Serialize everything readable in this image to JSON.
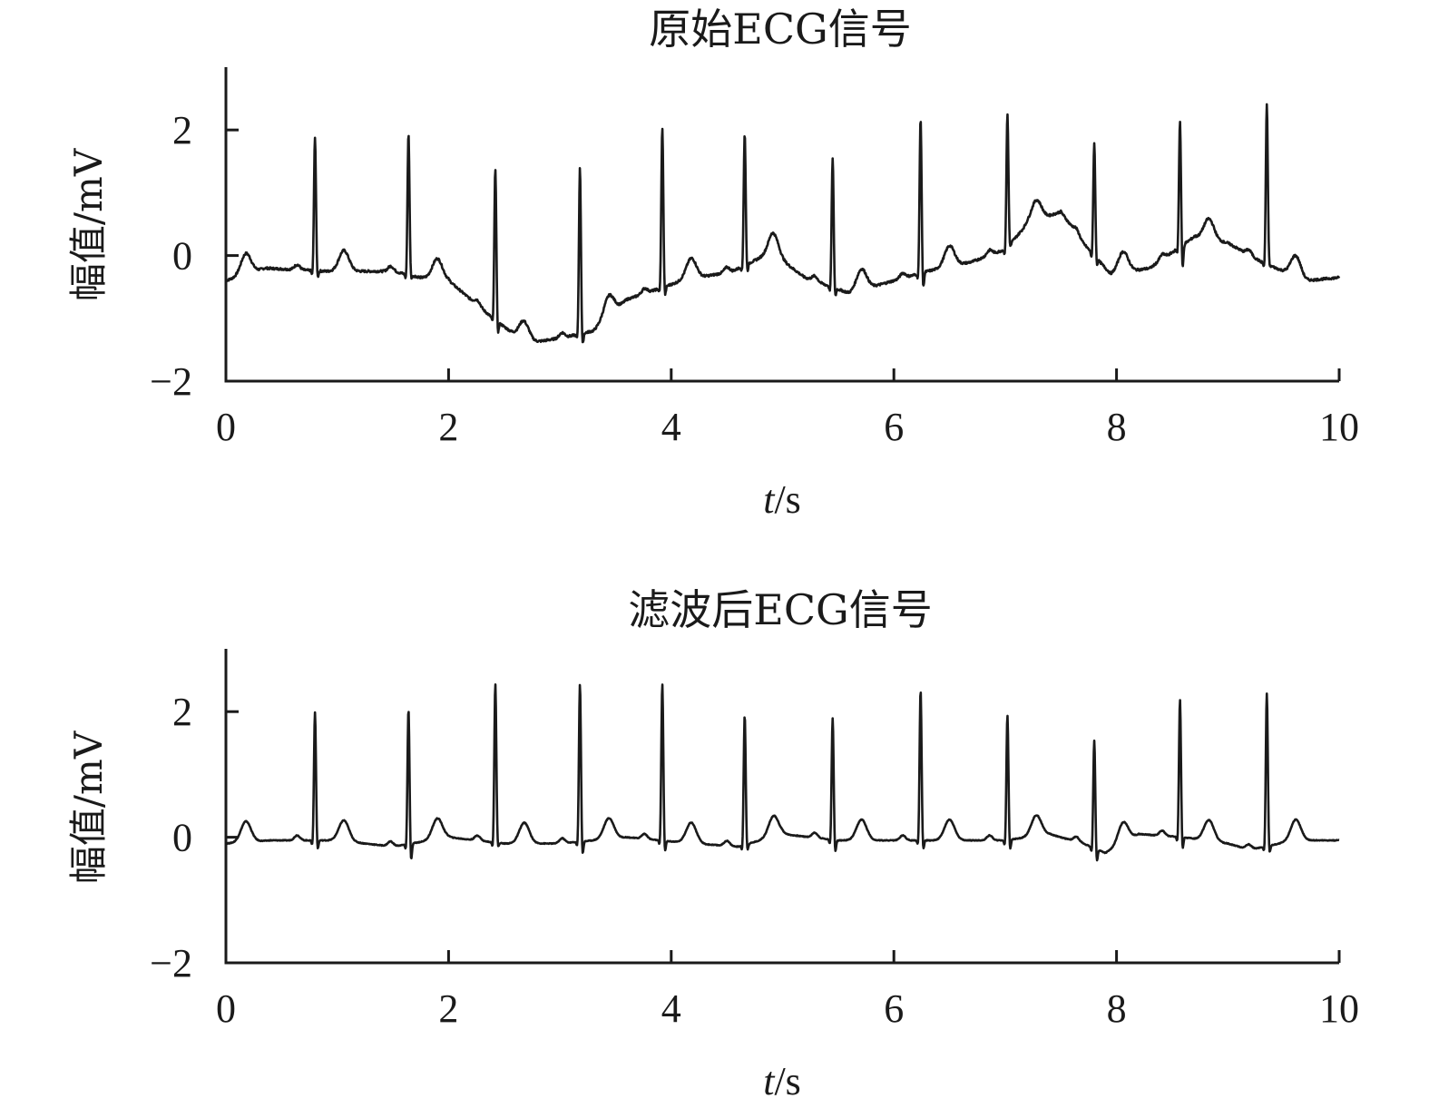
{
  "chart_data": [
    {
      "type": "line",
      "title": "原始ECG信号",
      "xlabel_italic": "t",
      "xlabel_rest": "/s",
      "ylabel": "幅值/mV",
      "xlim": [
        0,
        10
      ],
      "ylim": [
        -2,
        3
      ],
      "xticks": [
        "0",
        "2",
        "4",
        "6",
        "8",
        "10"
      ],
      "yticks": [
        "2",
        "0",
        "−2"
      ],
      "grid": false,
      "color": "#1a1a1a",
      "beats": [
        {
          "t": 0.8,
          "r": 1.9,
          "s": -0.4
        },
        {
          "t": 1.64,
          "r": 1.95,
          "s": -0.4
        },
        {
          "t": 2.42,
          "r": 1.4,
          "s": -1.3
        },
        {
          "t": 3.18,
          "r": 1.4,
          "s": -1.5
        },
        {
          "t": 3.92,
          "r": 2.05,
          "s": -0.7
        },
        {
          "t": 4.66,
          "r": 1.95,
          "s": -0.3
        },
        {
          "t": 5.45,
          "r": 1.55,
          "s": -0.7
        },
        {
          "t": 6.24,
          "r": 2.2,
          "s": -0.6
        },
        {
          "t": 7.02,
          "r": 2.25,
          "s": 0.1
        },
        {
          "t": 7.8,
          "r": 1.8,
          "s": -0.2
        },
        {
          "t": 8.57,
          "r": 2.15,
          "s": -0.3
        },
        {
          "t": 9.35,
          "r": 2.4,
          "s": -0.2
        }
      ],
      "baseline": [
        {
          "t": 0.0,
          "y": -0.4
        },
        {
          "t": 0.35,
          "y": -0.2
        },
        {
          "t": 0.9,
          "y": -0.25
        },
        {
          "t": 1.5,
          "y": -0.25
        },
        {
          "t": 1.75,
          "y": -0.35
        },
        {
          "t": 2.0,
          "y": -0.4
        },
        {
          "t": 2.4,
          "y": -1.0
        },
        {
          "t": 2.7,
          "y": -1.4
        },
        {
          "t": 3.05,
          "y": -1.3
        },
        {
          "t": 3.3,
          "y": -1.2
        },
        {
          "t": 3.6,
          "y": -0.7
        },
        {
          "t": 4.1,
          "y": -0.4
        },
        {
          "t": 4.55,
          "y": -0.25
        },
        {
          "t": 4.9,
          "y": 0.05
        },
        {
          "t": 5.2,
          "y": -0.35
        },
        {
          "t": 5.6,
          "y": -0.6
        },
        {
          "t": 6.0,
          "y": -0.4
        },
        {
          "t": 6.3,
          "y": -0.25
        },
        {
          "t": 6.7,
          "y": -0.1
        },
        {
          "t": 7.0,
          "y": 0.1
        },
        {
          "t": 7.2,
          "y": 0.5
        },
        {
          "t": 7.5,
          "y": 0.7
        },
        {
          "t": 7.7,
          "y": 0.2
        },
        {
          "t": 7.95,
          "y": -0.3
        },
        {
          "t": 8.3,
          "y": -0.2
        },
        {
          "t": 8.7,
          "y": 0.3
        },
        {
          "t": 9.0,
          "y": 0.2
        },
        {
          "t": 9.3,
          "y": -0.1
        },
        {
          "t": 9.7,
          "y": -0.4
        },
        {
          "t": 10.0,
          "y": -0.35
        }
      ]
    },
    {
      "type": "line",
      "title": "滤波后ECG信号",
      "xlabel_italic": "t",
      "xlabel_rest": "/s",
      "ylabel": "幅值/mV",
      "xlim": [
        0,
        10
      ],
      "ylim": [
        -2,
        3
      ],
      "xticks": [
        "0",
        "2",
        "4",
        "6",
        "8",
        "10"
      ],
      "yticks": [
        "2",
        "0",
        "−2"
      ],
      "grid": false,
      "color": "#1a1a1a",
      "beats": [
        {
          "t": 0.8,
          "r": 2.0,
          "s": -0.25
        },
        {
          "t": 1.64,
          "r": 2.05,
          "s": -0.45
        },
        {
          "t": 2.42,
          "r": 2.45,
          "s": -0.2
        },
        {
          "t": 3.18,
          "r": 2.45,
          "s": -0.35
        },
        {
          "t": 3.92,
          "r": 2.45,
          "s": -0.3
        },
        {
          "t": 4.66,
          "r": 1.95,
          "s": -0.25
        },
        {
          "t": 5.45,
          "r": 1.9,
          "s": -0.3
        },
        {
          "t": 6.24,
          "r": 2.35,
          "s": -0.25
        },
        {
          "t": 7.02,
          "r": 1.95,
          "s": -0.25
        },
        {
          "t": 7.8,
          "r": 1.55,
          "s": -0.45
        },
        {
          "t": 8.57,
          "r": 2.2,
          "s": -0.25
        },
        {
          "t": 9.35,
          "r": 2.3,
          "s": -0.3
        }
      ],
      "baseline": [
        {
          "t": 0.0,
          "y": -0.1
        },
        {
          "t": 0.4,
          "y": -0.05
        },
        {
          "t": 1.0,
          "y": -0.05
        },
        {
          "t": 1.5,
          "y": -0.15
        },
        {
          "t": 2.0,
          "y": 0.0
        },
        {
          "t": 2.5,
          "y": -0.1
        },
        {
          "t": 3.0,
          "y": -0.1
        },
        {
          "t": 3.6,
          "y": 0.0
        },
        {
          "t": 4.2,
          "y": -0.1
        },
        {
          "t": 4.6,
          "y": -0.15
        },
        {
          "t": 5.0,
          "y": 0.05
        },
        {
          "t": 5.5,
          "y": -0.05
        },
        {
          "t": 6.0,
          "y": -0.05
        },
        {
          "t": 6.6,
          "y": -0.05
        },
        {
          "t": 7.0,
          "y": -0.05
        },
        {
          "t": 7.4,
          "y": 0.05
        },
        {
          "t": 7.7,
          "y": -0.1
        },
        {
          "t": 7.9,
          "y": -0.25
        },
        {
          "t": 8.2,
          "y": 0.05
        },
        {
          "t": 8.6,
          "y": 0.0
        },
        {
          "t": 9.0,
          "y": -0.1
        },
        {
          "t": 9.2,
          "y": -0.2
        },
        {
          "t": 9.6,
          "y": -0.05
        },
        {
          "t": 10.0,
          "y": -0.05
        }
      ]
    }
  ]
}
